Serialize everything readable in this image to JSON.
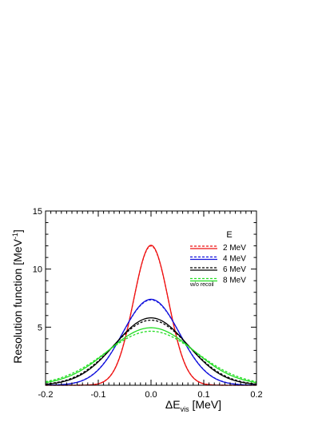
{
  "chart_data": {
    "type": "line",
    "title": "",
    "xlabel": "ΔE",
    "xlabel_sub": "vis",
    "xlabel_unit": " [MeV]",
    "ylabel": "Resolution function [MeV",
    "ylabel_sup": "-1",
    "ylabel_end": "]",
    "xlim": [
      -0.2,
      0.2
    ],
    "ylim": [
      0,
      15
    ],
    "xticks": [
      -0.2,
      -0.1,
      0.0,
      0.1,
      0.2
    ],
    "xtick_labels": [
      "-0.2",
      "-0.1",
      "0.0",
      "0.1",
      "0.2"
    ],
    "yticks": [
      5,
      10,
      15
    ],
    "ytick_labels": [
      "5",
      "10",
      "15"
    ],
    "grid": false,
    "legend": {
      "placement": "top-right",
      "header": "E",
      "note": "w/o recoil",
      "entries": [
        "2 MeV",
        "4 MeV",
        "6 MeV",
        "8 MeV"
      ]
    },
    "series": [
      {
        "name": "2 MeV",
        "color": "#ee1111",
        "peak": 12.05,
        "peak_dashed": 12.0
      },
      {
        "name": "4 MeV",
        "color": "#1111dd",
        "peak": 7.4,
        "peak_dashed": 7.35
      },
      {
        "name": "6 MeV",
        "color": "#000000",
        "peak": 5.8,
        "peak_dashed": 5.6
      },
      {
        "name": "8 MeV",
        "color": "#22dd22",
        "peak": 4.95,
        "peak_dashed": 4.65
      }
    ]
  }
}
